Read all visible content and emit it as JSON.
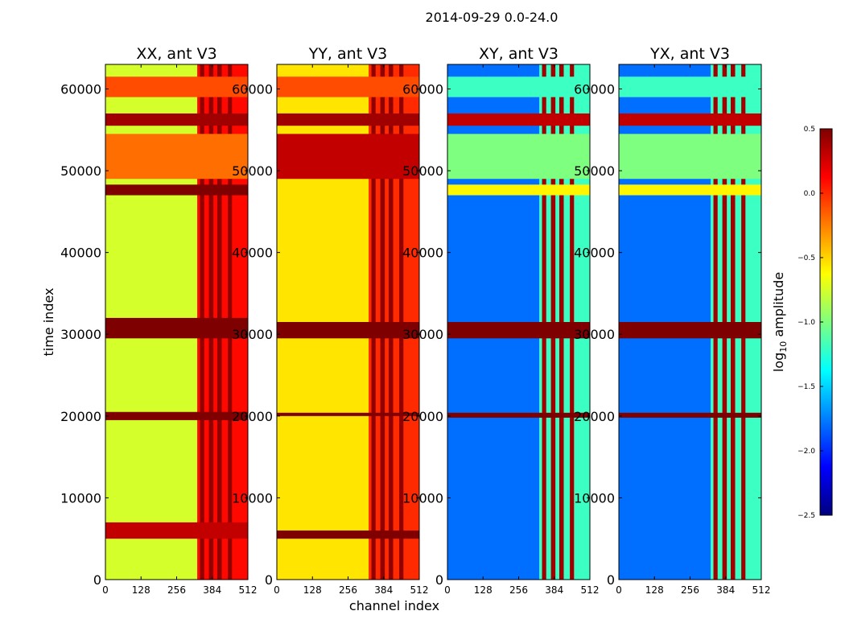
{
  "figure": {
    "suptitle": "2014-09-29 0.0-24.0",
    "xlabel": "channel index",
    "ylabel": "time index"
  },
  "colorbar": {
    "label_prefix": "log",
    "label_sub": "10",
    "label_suffix": " amplitude",
    "vmin": -2.5,
    "vmax": 0.5,
    "ticks": [
      0.5,
      0.0,
      -0.5,
      -1.0,
      -1.5,
      -2.0,
      -2.5
    ],
    "tick_labels": [
      "0.5",
      "0.0",
      "−0.5",
      "−1.0",
      "−1.5",
      "−2.0",
      "−2.5"
    ],
    "colormap": "jet",
    "colors": [
      "#00007f",
      "#0000ff",
      "#007fff",
      "#00ffff",
      "#7fff7f",
      "#ffff00",
      "#ff7f00",
      "#ff0000",
      "#7f0000"
    ]
  },
  "chart_data": [
    {
      "type": "heatmap",
      "title": "XX, ant V3",
      "xlabel": "channel index",
      "ylabel": "time index",
      "xlim": [
        0,
        512
      ],
      "ylim": [
        0,
        63000
      ],
      "x_ticks": [
        0,
        128,
        256,
        384,
        512
      ],
      "x_tick_labels": [
        "0",
        "128",
        "256",
        "384",
        "512"
      ],
      "y_ticks": [
        0,
        10000,
        20000,
        30000,
        40000,
        50000,
        60000
      ],
      "y_tick_labels": [
        "0",
        "10000",
        "20000",
        "30000",
        "40000",
        "50000",
        "60000"
      ],
      "base_log10_amplitude": -0.75,
      "bright_channels": [
        {
          "from": 330,
          "to": 512,
          "log10_amplitude": 0.1
        },
        {
          "from": 340,
          "to": 355,
          "log10_amplitude": 0.45
        },
        {
          "from": 372,
          "to": 388,
          "log10_amplitude": 0.45
        },
        {
          "from": 402,
          "to": 418,
          "log10_amplitude": 0.45
        },
        {
          "from": 440,
          "to": 455,
          "log10_amplitude": 0.45
        }
      ],
      "bright_time_bands": [
        {
          "from": 29500,
          "to": 32000,
          "log10_amplitude": 0.5
        },
        {
          "from": 19500,
          "to": 20500,
          "log10_amplitude": 0.5
        },
        {
          "from": 47000,
          "to": 48300,
          "log10_amplitude": 0.5
        },
        {
          "from": 55500,
          "to": 57000,
          "log10_amplitude": 0.4
        },
        {
          "from": 49000,
          "to": 54500,
          "log10_amplitude": -0.2
        },
        {
          "from": 59000,
          "to": 61500,
          "log10_amplitude": -0.1
        },
        {
          "from": 5000,
          "to": 7000,
          "log10_amplitude": 0.3
        }
      ]
    },
    {
      "type": "heatmap",
      "title": "YY, ant V3",
      "xlabel": "channel index",
      "ylabel": "time index",
      "xlim": [
        0,
        512
      ],
      "ylim": [
        0,
        63000
      ],
      "x_ticks": [
        0,
        128,
        256,
        384,
        512
      ],
      "x_tick_labels": [
        "0",
        "128",
        "256",
        "384",
        "512"
      ],
      "y_ticks": [
        0,
        10000,
        20000,
        30000,
        40000,
        50000,
        60000
      ],
      "y_tick_labels": [
        "0",
        "10000",
        "20000",
        "30000",
        "40000",
        "50000",
        "60000"
      ],
      "base_log10_amplitude": -0.55,
      "bright_channels": [
        {
          "from": 330,
          "to": 512,
          "log10_amplitude": 0.0
        },
        {
          "from": 340,
          "to": 355,
          "log10_amplitude": 0.45
        },
        {
          "from": 372,
          "to": 388,
          "log10_amplitude": 0.45
        },
        {
          "from": 402,
          "to": 418,
          "log10_amplitude": 0.45
        },
        {
          "from": 440,
          "to": 455,
          "log10_amplitude": 0.45
        }
      ],
      "bright_time_bands": [
        {
          "from": 29500,
          "to": 31500,
          "log10_amplitude": 0.5
        },
        {
          "from": 20000,
          "to": 20400,
          "log10_amplitude": 0.5
        },
        {
          "from": 5000,
          "to": 6000,
          "log10_amplitude": 0.5
        },
        {
          "from": 49000,
          "to": 54500,
          "log10_amplitude": 0.3
        },
        {
          "from": 55500,
          "to": 57000,
          "log10_amplitude": 0.4
        },
        {
          "from": 59000,
          "to": 61500,
          "log10_amplitude": -0.1
        }
      ]
    },
    {
      "type": "heatmap",
      "title": "XY, ant V3",
      "xlabel": "channel index",
      "ylabel": "time index",
      "xlim": [
        0,
        512
      ],
      "ylim": [
        0,
        63000
      ],
      "x_ticks": [
        0,
        128,
        256,
        384,
        512
      ],
      "x_tick_labels": [
        "0",
        "128",
        "256",
        "384",
        "512"
      ],
      "y_ticks": [
        0,
        10000,
        20000,
        30000,
        40000,
        50000,
        60000
      ],
      "y_tick_labels": [
        "0",
        "10000",
        "20000",
        "30000",
        "40000",
        "50000",
        "60000"
      ],
      "base_log10_amplitude": -1.8,
      "bright_channels": [
        {
          "from": 330,
          "to": 512,
          "log10_amplitude": -1.2
        },
        {
          "from": 340,
          "to": 355,
          "log10_amplitude": 0.4
        },
        {
          "from": 372,
          "to": 388,
          "log10_amplitude": 0.4
        },
        {
          "from": 402,
          "to": 418,
          "log10_amplitude": 0.4
        },
        {
          "from": 440,
          "to": 455,
          "log10_amplitude": 0.4
        }
      ],
      "bright_time_bands": [
        {
          "from": 29500,
          "to": 31500,
          "log10_amplitude": 0.5
        },
        {
          "from": 19800,
          "to": 20400,
          "log10_amplitude": 0.5
        },
        {
          "from": 47000,
          "to": 48300,
          "log10_amplitude": -0.6
        },
        {
          "from": 55500,
          "to": 57000,
          "log10_amplitude": 0.3
        },
        {
          "from": 49000,
          "to": 54500,
          "log10_amplitude": -1.0
        },
        {
          "from": 59000,
          "to": 61500,
          "log10_amplitude": -1.2
        }
      ]
    },
    {
      "type": "heatmap",
      "title": "YX, ant V3",
      "xlabel": "channel index",
      "ylabel": "time index",
      "xlim": [
        0,
        512
      ],
      "ylim": [
        0,
        63000
      ],
      "x_ticks": [
        0,
        128,
        256,
        384,
        512
      ],
      "x_tick_labels": [
        "0",
        "128",
        "256",
        "384",
        "512"
      ],
      "y_ticks": [
        0,
        10000,
        20000,
        30000,
        40000,
        50000,
        60000
      ],
      "y_tick_labels": [
        "0",
        "10000",
        "20000",
        "30000",
        "40000",
        "50000",
        "60000"
      ],
      "base_log10_amplitude": -1.8,
      "bright_channels": [
        {
          "from": 330,
          "to": 512,
          "log10_amplitude": -1.2
        },
        {
          "from": 340,
          "to": 355,
          "log10_amplitude": 0.4
        },
        {
          "from": 372,
          "to": 388,
          "log10_amplitude": 0.4
        },
        {
          "from": 402,
          "to": 418,
          "log10_amplitude": 0.4
        },
        {
          "from": 440,
          "to": 455,
          "log10_amplitude": 0.4
        }
      ],
      "bright_time_bands": [
        {
          "from": 29500,
          "to": 31500,
          "log10_amplitude": 0.5
        },
        {
          "from": 19800,
          "to": 20400,
          "log10_amplitude": 0.5
        },
        {
          "from": 47000,
          "to": 48300,
          "log10_amplitude": -0.6
        },
        {
          "from": 55500,
          "to": 57000,
          "log10_amplitude": 0.3
        },
        {
          "from": 49000,
          "to": 54500,
          "log10_amplitude": -1.0
        },
        {
          "from": 59000,
          "to": 61500,
          "log10_amplitude": -1.2
        }
      ]
    }
  ]
}
